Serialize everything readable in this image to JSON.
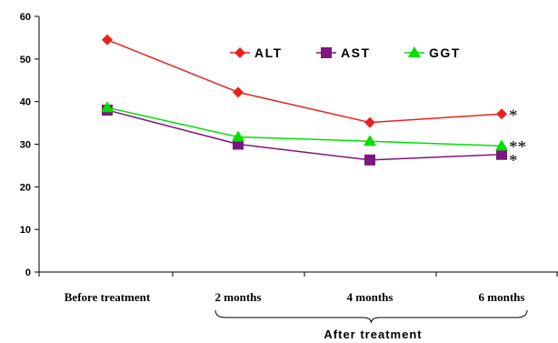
{
  "chart_data": {
    "type": "line",
    "title": "",
    "xlabel": "",
    "ylabel": "",
    "categories": [
      "Before treatment",
      "2 months",
      "4 months",
      "6 months"
    ],
    "category_group": {
      "label": "After treatment",
      "spans": [
        "2 months",
        "4 months",
        "6 months"
      ]
    },
    "ylim": [
      0,
      60
    ],
    "yticks": [
      0,
      10,
      20,
      30,
      40,
      50,
      60
    ],
    "grid": false,
    "legend_position": "top-right",
    "series": [
      {
        "name": "ALT",
        "color": "#e8231c",
        "marker": "diamond",
        "values": [
          54.5,
          42.2,
          35.1,
          37.1
        ]
      },
      {
        "name": "AST",
        "color": "#7f1580",
        "marker": "square",
        "values": [
          38.0,
          30.0,
          26.3,
          27.6
        ]
      },
      {
        "name": "GGT",
        "color": "#00e000",
        "marker": "triangle",
        "values": [
          38.6,
          31.7,
          30.7,
          29.6
        ]
      }
    ],
    "annotations": [
      {
        "text": "*",
        "series": "ALT",
        "category": "6 months"
      },
      {
        "text": "**",
        "series": "GGT",
        "category": "6 months"
      },
      {
        "text": "*",
        "series": "AST",
        "category": "6 months"
      }
    ]
  }
}
